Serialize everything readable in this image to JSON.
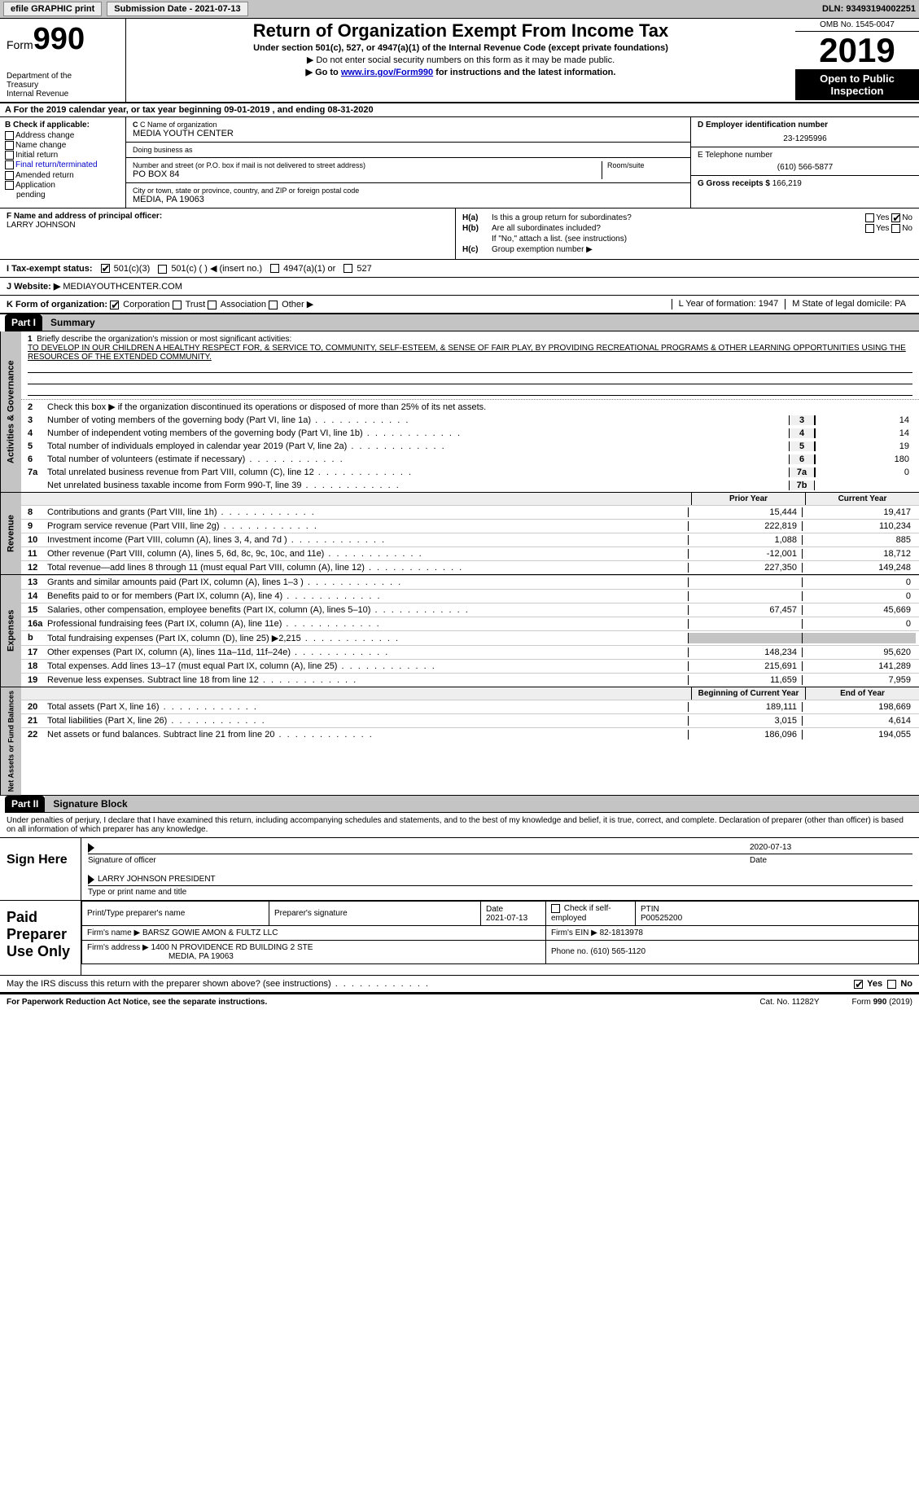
{
  "topbar": {
    "efile": "efile GRAPHIC print",
    "submission": "Submission Date - 2021-07-13",
    "dln": "DLN: 93493194002251"
  },
  "header": {
    "form_prefix": "Form",
    "form_num": "990",
    "dept1": "Department of the",
    "dept2": "Treasury",
    "dept3": "Internal Revenue",
    "title": "Return of Organization Exempt From Income Tax",
    "sub": "Under section 501(c), 527, or 4947(a)(1) of the Internal Revenue Code (except private foundations)",
    "sub2": "▶ Do not enter social security numbers on this form as it may be made public.",
    "sub3a": "▶ Go to ",
    "sub3_link": "www.irs.gov/Form990",
    "sub3b": " for instructions and the latest information.",
    "omb": "OMB No. 1545-0047",
    "year": "2019",
    "open": "Open to Public Inspection"
  },
  "row_a": "A For the 2019 calendar year, or tax year beginning 09-01-2019   , and ending 08-31-2020",
  "col_b": {
    "hdr": "B Check if applicable:",
    "o1": "Address change",
    "o2": "Name change",
    "o3": "Initial return",
    "o4": "Final return/terminated",
    "o5": "Amended return",
    "o6": "Application",
    "o7": "pending"
  },
  "col_c": {
    "name_lbl": "C Name of organization",
    "name": "MEDIA YOUTH CENTER",
    "dba_lbl": "Doing business as",
    "dba": "",
    "addr_lbl": "Number and street (or P.O. box if mail is not delivered to street address)",
    "room_lbl": "Room/suite",
    "addr": "PO BOX 84",
    "city_lbl": "City or town, state or province, country, and ZIP or foreign postal code",
    "city": "MEDIA, PA  19063"
  },
  "col_de": {
    "d_lbl": "D Employer identification number",
    "d_val": "23-1295996",
    "e_lbl": "E Telephone number",
    "e_val": "(610) 566-5877",
    "g_lbl": "G Gross receipts $",
    "g_val": "166,219"
  },
  "f": {
    "lbl": "F  Name and address of principal officer:",
    "val": "LARRY JOHNSON"
  },
  "h": {
    "a_lbl": "H(a)",
    "a_txt": "Is this a group return for subordinates?",
    "b_lbl": "H(b)",
    "b_txt": "Are all subordinates included?",
    "note": "If \"No,\" attach a list. (see instructions)",
    "c_lbl": "H(c)",
    "c_txt": "Group exemption number ▶",
    "yes": "Yes",
    "no": "No"
  },
  "row_i": {
    "lbl": "I   Tax-exempt status:",
    "o1": "501(c)(3)",
    "o2": "501(c) (  ) ◀ (insert no.)",
    "o3": "4947(a)(1) or",
    "o4": "527"
  },
  "row_j": {
    "lbl": "J   Website: ▶",
    "val": "MEDIAYOUTHCENTER.COM"
  },
  "row_k": {
    "lbl": "K Form of organization:",
    "o1": "Corporation",
    "o2": "Trust",
    "o3": "Association",
    "o4": "Other ▶",
    "l": "L Year of formation: 1947",
    "m": "M State of legal domicile: PA"
  },
  "part1": {
    "hdr": "Part I",
    "title": "Summary",
    "q1a": "Briefly describe the organization's mission or most significant activities:",
    "q1b": "TO DEVELOP IN OUR CHILDREN A HEALTHY RESPECT FOR, & SERVICE TO, COMMUNITY, SELF-ESTEEM, & SENSE OF FAIR PLAY, BY PROVIDING RECREATIONAL PROGRAMS & OTHER LEARNING OPPORTUNITIES USING THE RESOURCES OF THE EXTENDED COMMUNITY.",
    "q2": "Check this box ▶      if the organization discontinued its operations or disposed of more than 25% of its net assets.",
    "vtab_ag": "Activities & Governance",
    "lines_ag": [
      {
        "n": "3",
        "t": "Number of voting members of the governing body (Part VI, line 1a)",
        "b": "3",
        "v": "14"
      },
      {
        "n": "4",
        "t": "Number of independent voting members of the governing body (Part VI, line 1b)",
        "b": "4",
        "v": "14"
      },
      {
        "n": "5",
        "t": "Total number of individuals employed in calendar year 2019 (Part V, line 2a)",
        "b": "5",
        "v": "19"
      },
      {
        "n": "6",
        "t": "Total number of volunteers (estimate if necessary)",
        "b": "6",
        "v": "180"
      },
      {
        "n": "7a",
        "t": "Total unrelated business revenue from Part VIII, column (C), line 12",
        "b": "7a",
        "v": "0"
      },
      {
        "n": "",
        "t": "Net unrelated business taxable income from Form 990-T, line 39",
        "b": "7b",
        "v": ""
      }
    ],
    "py_hdr": "Prior Year",
    "cy_hdr": "Current Year",
    "vtab_rev": "Revenue",
    "lines_rev": [
      {
        "n": "8",
        "t": "Contributions and grants (Part VIII, line 1h)",
        "py": "15,444",
        "cy": "19,417"
      },
      {
        "n": "9",
        "t": "Program service revenue (Part VIII, line 2g)",
        "py": "222,819",
        "cy": "110,234"
      },
      {
        "n": "10",
        "t": "Investment income (Part VIII, column (A), lines 3, 4, and 7d )",
        "py": "1,088",
        "cy": "885"
      },
      {
        "n": "11",
        "t": "Other revenue (Part VIII, column (A), lines 5, 6d, 8c, 9c, 10c, and 11e)",
        "py": "-12,001",
        "cy": "18,712"
      },
      {
        "n": "12",
        "t": "Total revenue—add lines 8 through 11 (must equal Part VIII, column (A), line 12)",
        "py": "227,350",
        "cy": "149,248"
      }
    ],
    "vtab_exp": "Expenses",
    "lines_exp": [
      {
        "n": "13",
        "t": "Grants and similar amounts paid (Part IX, column (A), lines 1–3 )",
        "py": "",
        "cy": "0"
      },
      {
        "n": "14",
        "t": "Benefits paid to or for members (Part IX, column (A), line 4)",
        "py": "",
        "cy": "0"
      },
      {
        "n": "15",
        "t": "Salaries, other compensation, employee benefits (Part IX, column (A), lines 5–10)",
        "py": "67,457",
        "cy": "45,669"
      },
      {
        "n": "16a",
        "t": "Professional fundraising fees (Part IX, column (A), line 11e)",
        "py": "",
        "cy": "0"
      },
      {
        "n": "b",
        "t": "Total fundraising expenses (Part IX, column (D), line 25) ▶2,215",
        "py": "",
        "cy": "",
        "shade": true
      },
      {
        "n": "17",
        "t": "Other expenses (Part IX, column (A), lines 11a–11d, 11f–24e)",
        "py": "148,234",
        "cy": "95,620"
      },
      {
        "n": "18",
        "t": "Total expenses. Add lines 13–17 (must equal Part IX, column (A), line 25)",
        "py": "215,691",
        "cy": "141,289"
      },
      {
        "n": "19",
        "t": "Revenue less expenses. Subtract line 18 from line 12",
        "py": "11,659",
        "cy": "7,959"
      }
    ],
    "boy_hdr": "Beginning of Current Year",
    "eoy_hdr": "End of Year",
    "vtab_na": "Net Assets or Fund Balances",
    "lines_na": [
      {
        "n": "20",
        "t": "Total assets (Part X, line 16)",
        "py": "189,111",
        "cy": "198,669"
      },
      {
        "n": "21",
        "t": "Total liabilities (Part X, line 26)",
        "py": "3,015",
        "cy": "4,614"
      },
      {
        "n": "22",
        "t": "Net assets or fund balances. Subtract line 21 from line 20",
        "py": "186,096",
        "cy": "194,055"
      }
    ]
  },
  "part2": {
    "hdr": "Part II",
    "title": "Signature Block",
    "decl": "Under penalties of perjury, I declare that I have examined this return, including accompanying schedules and statements, and to the best of my knowledge and belief, it is true, correct, and complete. Declaration of preparer (other than officer) is based on all information of which preparer has any knowledge.",
    "sign_here": "Sign Here",
    "sig_officer": "Signature of officer",
    "sig_date": "2020-07-13",
    "date_lbl": "Date",
    "officer": "LARRY JOHNSON  PRESIDENT",
    "type_lbl": "Type or print name and title",
    "paid": "Paid Preparer Use Only",
    "prep_name_lbl": "Print/Type preparer's name",
    "prep_sig_lbl": "Preparer's signature",
    "prep_date_lbl": "Date",
    "prep_date": "2021-07-13",
    "check_lbl": "Check       if self-employed",
    "ptin_lbl": "PTIN",
    "ptin": "P00525200",
    "firm_name_lbl": "Firm's name    ▶",
    "firm_name": "BARSZ GOWIE AMON & FULTZ LLC",
    "firm_ein_lbl": "Firm's EIN ▶",
    "firm_ein": "82-1813978",
    "firm_addr_lbl": "Firm's address ▶",
    "firm_addr1": "1400 N PROVIDENCE RD BUILDING 2 STE",
    "firm_addr2": "MEDIA, PA  19063",
    "phone_lbl": "Phone no.",
    "phone": "(610) 565-1120",
    "discuss": "May the IRS discuss this return with the preparer shown above? (see instructions)"
  },
  "footer": {
    "left": "For Paperwork Reduction Act Notice, see the separate instructions.",
    "mid": "Cat. No. 11282Y",
    "right": "Form 990 (2019)"
  }
}
